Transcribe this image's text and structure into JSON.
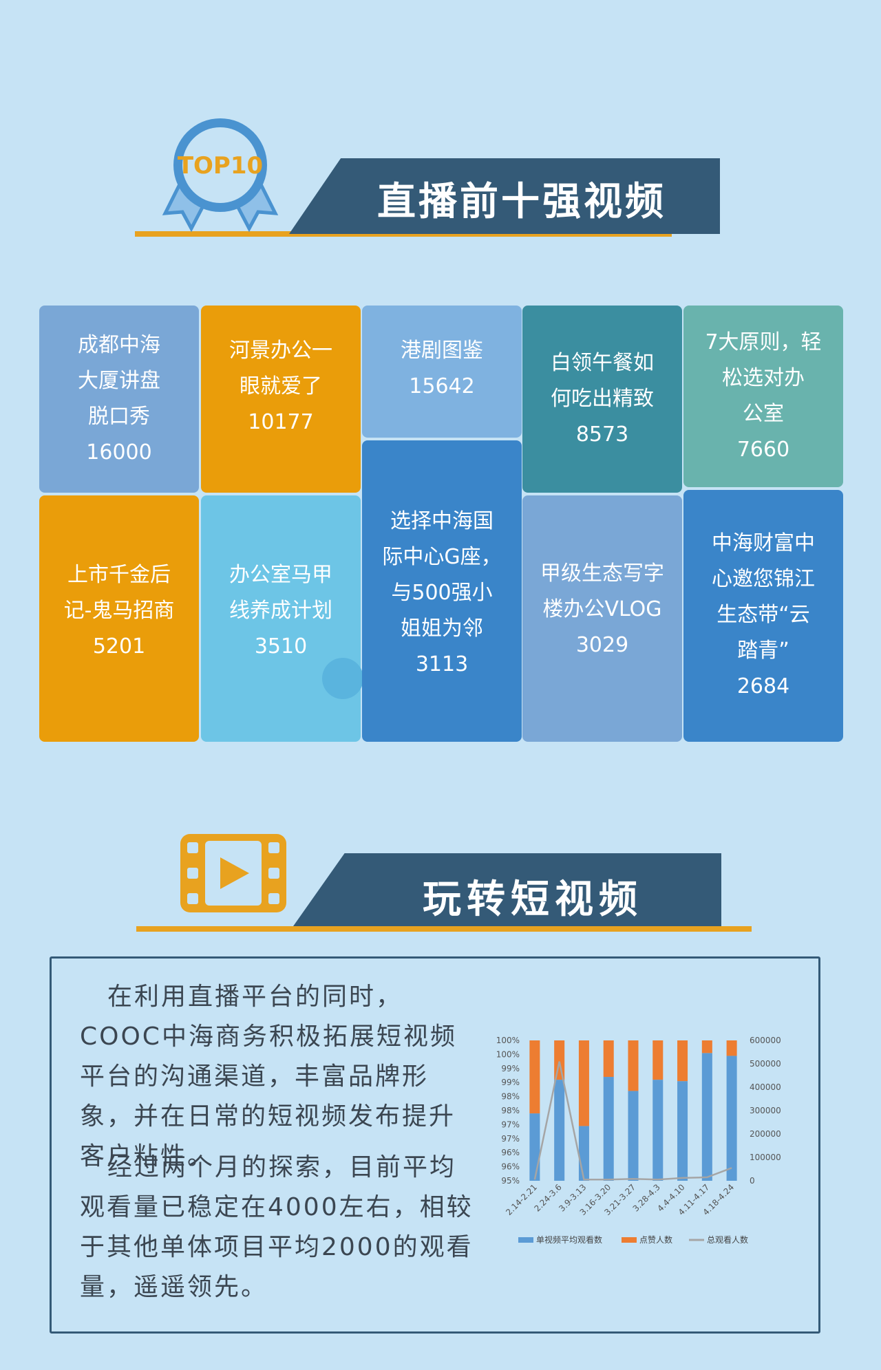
{
  "section1": {
    "badge_text": "TOP10",
    "title": "直播前十强视频"
  },
  "tiles": [
    {
      "name": "成都中海\n大厦讲盘\n脱口秀",
      "value": "16000"
    },
    {
      "name": "河景办公一\n眼就爱了",
      "value": "10177"
    },
    {
      "name": "港剧图鉴",
      "value": "15642"
    },
    {
      "name": "白领午餐如\n何吃出精致",
      "value": "8573"
    },
    {
      "name": "7大原则，轻\n松选对办\n公室",
      "value": "7660"
    },
    {
      "name": "上市千金后\n记-鬼马招商",
      "value": "5201"
    },
    {
      "name": "办公室马甲\n线养成计划",
      "value": "3510"
    },
    {
      "name": "选择中海国\n际中心G座，\n与500强小\n姐姐为邻",
      "value": "3113"
    },
    {
      "name": "甲级生态写字\n楼办公VLOG",
      "value": "3029"
    },
    {
      "name": "中海财富中\n心邀您锦江\n生态带“云\n踏青”",
      "value": "2684"
    }
  ],
  "section2": {
    "title": "玩转短视频",
    "para1": "在利用直播平台的同时，COOC中海商务积极拓展短视频平台的沟通渠道，丰富品牌形象，并在日常的短视频发布提升客户粘性。",
    "para2": "经过两个月的探索，目前平均观看量已稳定在4000左右，相较于其他单体项目平均2000的观看量，遥遥领先。"
  },
  "colors": {
    "background": "#c6e3f5",
    "banner": "#345a77",
    "accent": "#e8a21f",
    "tile_blue_light": "#7aa7d6",
    "tile_orange": "#ea9d0a",
    "tile_sky": "#7fb2e0",
    "tile_teal": "#3b8ea0",
    "tile_seafoam": "#69b3ad",
    "tile_cyan": "#6dc5e6",
    "tile_blue": "#3a85c9",
    "series_blue": "#5b9bd5",
    "series_orange": "#ed7d31",
    "series_gray": "#a5a5a5"
  },
  "chart_data": {
    "type": "bar",
    "categories": [
      "2.14-2.21",
      "2.24-3.6",
      "3.9-3.13",
      "3.16-3.20",
      "3.21-3.27",
      "3.28-4.3",
      "4.4-4.10",
      "4.11-4.17",
      "4.18-4.24"
    ],
    "left_ticks": [
      "100%",
      "100%",
      "99%",
      "99%",
      "98%",
      "98%",
      "97%",
      "97%",
      "96%",
      "96%",
      "95%"
    ],
    "right_ticks": [
      "600000",
      "500000",
      "400000",
      "300000",
      "200000",
      "100000",
      "0"
    ],
    "series": [
      {
        "name": "单视频平均观看数",
        "type": "bar-stacked",
        "values": [
          0.48,
          0.72,
          0.39,
          0.74,
          0.64,
          0.72,
          0.71,
          0.91,
          0.89
        ]
      },
      {
        "name": "点赞人数",
        "type": "bar-stacked",
        "values": [
          0.52,
          0.28,
          0.61,
          0.26,
          0.36,
          0.28,
          0.29,
          0.09,
          0.11
        ]
      },
      {
        "name": "总观看人数",
        "type": "line",
        "axis": "right",
        "values": [
          5000,
          510000,
          5000,
          5000,
          8000,
          5000,
          12000,
          15000,
          55000
        ]
      }
    ],
    "ylim_right": [
      0,
      600000
    ]
  }
}
